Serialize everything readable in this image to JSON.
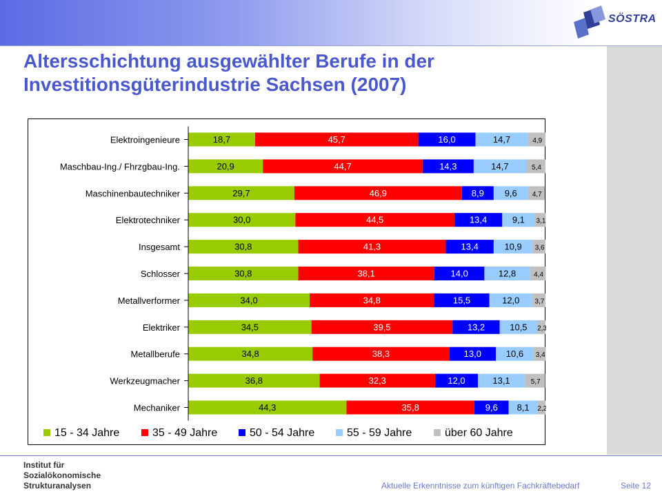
{
  "header": {
    "logo_text": "SÖSTRA",
    "logo_icon": "cube-logo-icon"
  },
  "title": {
    "line1": "Altersschichtung ausgewählter Berufe in der",
    "line2": "Investitionsgüterindustrie Sachsen (2007)"
  },
  "chart_data": {
    "type": "bar",
    "orientation": "horizontal",
    "stacked": "100%",
    "title": "",
    "xlabel": "",
    "ylabel": "",
    "categories": [
      "Elektroingenieure",
      "Maschbau-Ing./ Fhrzgbau-Ing.",
      "Maschinenbautechniker",
      "Elektrotechniker",
      "Insgesamt",
      "Schlosser",
      "Metallverformer",
      "Elektriker",
      "Metallberufe",
      "Werkzeugmacher",
      "Mechaniker"
    ],
    "series": [
      {
        "name": "15 - 34 Jahre",
        "color": "#99cc00",
        "values": [
          18.7,
          20.9,
          29.7,
          30.0,
          30.8,
          30.8,
          34.0,
          34.5,
          34.8,
          36.8,
          44.3
        ],
        "labels": [
          "18,7",
          "20,9",
          "29,7",
          "30,0",
          "30,8",
          "30,8",
          "34,0",
          "34,5",
          "34,8",
          "36,8",
          "44,3"
        ]
      },
      {
        "name": "35 - 49 Jahre",
        "color": "#ff0000",
        "values": [
          45.7,
          44.7,
          46.9,
          44.5,
          41.3,
          38.1,
          34.8,
          39.5,
          38.3,
          32.3,
          35.8
        ],
        "labels": [
          "45,7",
          "44,7",
          "46,9",
          "44,5",
          "41,3",
          "38,1",
          "34,8",
          "39,5",
          "38,3",
          "32,3",
          "35,8"
        ]
      },
      {
        "name": "50 - 54 Jahre",
        "color": "#0000ff",
        "values": [
          16.0,
          14.3,
          8.9,
          13.4,
          13.4,
          14.0,
          15.5,
          13.2,
          13.0,
          12.0,
          9.6
        ],
        "labels": [
          "16,0",
          "14,3",
          "8,9",
          "13,4",
          "13,4",
          "14,0",
          "15,5",
          "13,2",
          "13,0",
          "12,0",
          "9,6"
        ]
      },
      {
        "name": "55 - 59 Jahre",
        "color": "#99ccff",
        "values": [
          14.7,
          14.7,
          9.6,
          9.1,
          10.9,
          12.8,
          12.0,
          10.5,
          10.6,
          13.1,
          8.1
        ],
        "labels": [
          "14,7",
          "14,7",
          "9,6",
          "9,1",
          "10,9",
          "12,8",
          "12,0",
          "10,5",
          "10,6",
          "13,1",
          "8,1"
        ]
      },
      {
        "name": "über 60 Jahre",
        "color": "#c0c0c0",
        "values": [
          4.9,
          5.4,
          4.7,
          3.1,
          3.6,
          4.4,
          3.7,
          2.3,
          3.4,
          5.7,
          2.2
        ],
        "labels": [
          "4,9",
          "5,4",
          "4,7",
          "3,1",
          "3,6",
          "4,4",
          "3,7",
          "2,3",
          "3,4",
          "5,7",
          "2,2"
        ]
      }
    ],
    "xlim": [
      0,
      100
    ],
    "grid": false,
    "legend_position": "bottom"
  },
  "footer": {
    "institute_lines": [
      "Institut für",
      "Sozialökonomische",
      "Strukturanalysen"
    ],
    "text": "Aktuelle Erkenntnisse zum künftigen Fachkräftebedarf",
    "page": "Seite  12"
  }
}
